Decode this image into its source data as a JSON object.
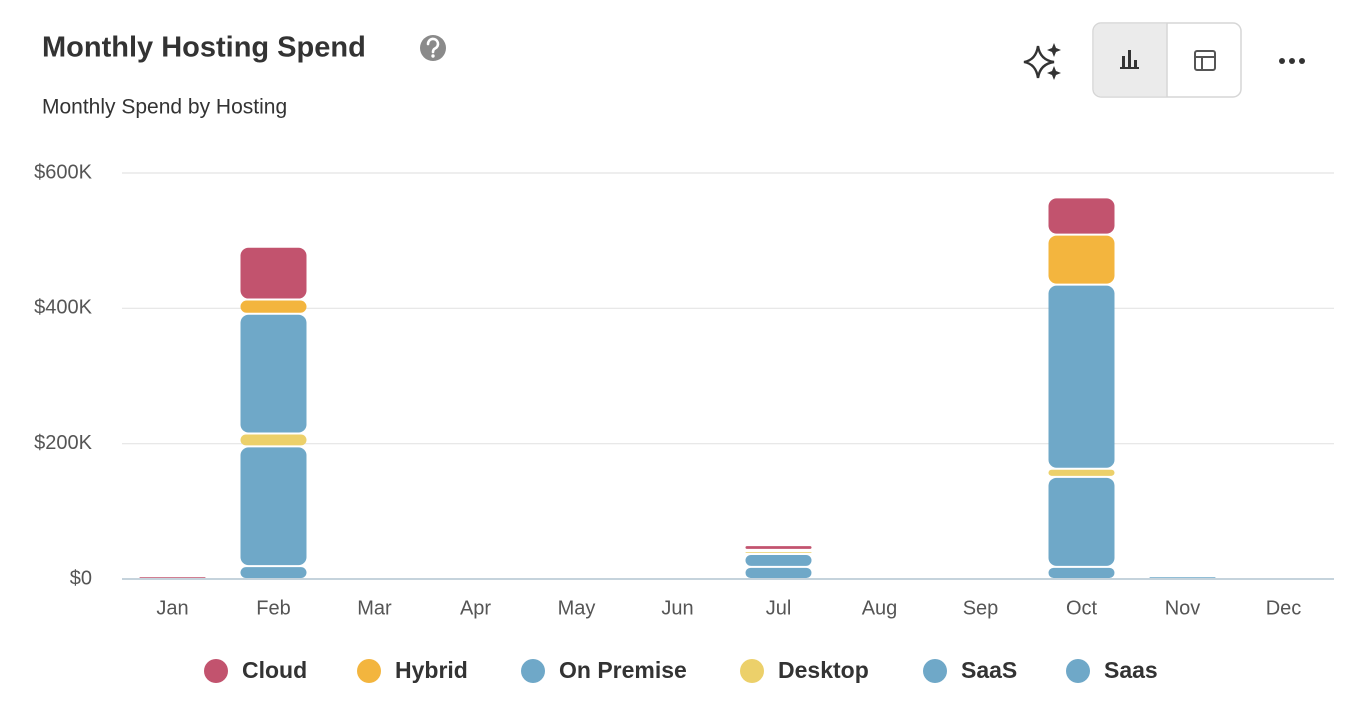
{
  "chart_data": {
    "type": "stacked_bar",
    "title": "Monthly Hosting Spend",
    "subtitle": "Monthly Spend by Hosting",
    "categories": [
      "Jan",
      "Feb",
      "Mar",
      "Apr",
      "May",
      "Jun",
      "Jul",
      "Aug",
      "Sep",
      "Oct",
      "Nov",
      "Dec"
    ],
    "series": [
      {
        "name": "Cloud",
        "color": "#c2536e",
        "values": [
          4000,
          78000,
          0,
          0,
          0,
          0,
          7000,
          0,
          0,
          55000,
          3000,
          0
        ]
      },
      {
        "name": "Hybrid",
        "color": "#f3b53e",
        "values": [
          0,
          21000,
          0,
          0,
          0,
          0,
          2000,
          0,
          0,
          74000,
          0,
          0
        ]
      },
      {
        "name": "On Premise",
        "color": "#6fa8c8",
        "values": [
          0,
          177000,
          0,
          0,
          0,
          0,
          0,
          0,
          0,
          272000,
          0,
          0
        ]
      },
      {
        "name": "Desktop",
        "color": "#ecd06a",
        "values": [
          0,
          19000,
          0,
          0,
          0,
          0,
          4000,
          0,
          0,
          12000,
          0,
          0
        ]
      },
      {
        "name": "SaaS",
        "color": "#6fa8c8",
        "values": [
          0,
          177000,
          0,
          0,
          0,
          0,
          19000,
          0,
          0,
          133000,
          3000,
          0
        ]
      },
      {
        "name": "Saas",
        "color": "#6fa8c8",
        "values": [
          0,
          19000,
          0,
          0,
          0,
          0,
          18000,
          0,
          0,
          18000,
          4000,
          0
        ]
      }
    ],
    "ylim": [
      0,
      600000
    ],
    "yticks": [
      {
        "value": 0,
        "label": "$0"
      },
      {
        "value": 200000,
        "label": "$200K"
      },
      {
        "value": 400000,
        "label": "$400K"
      },
      {
        "value": 600000,
        "label": "$600K"
      }
    ],
    "grid": true,
    "legend": "bottom"
  }
}
